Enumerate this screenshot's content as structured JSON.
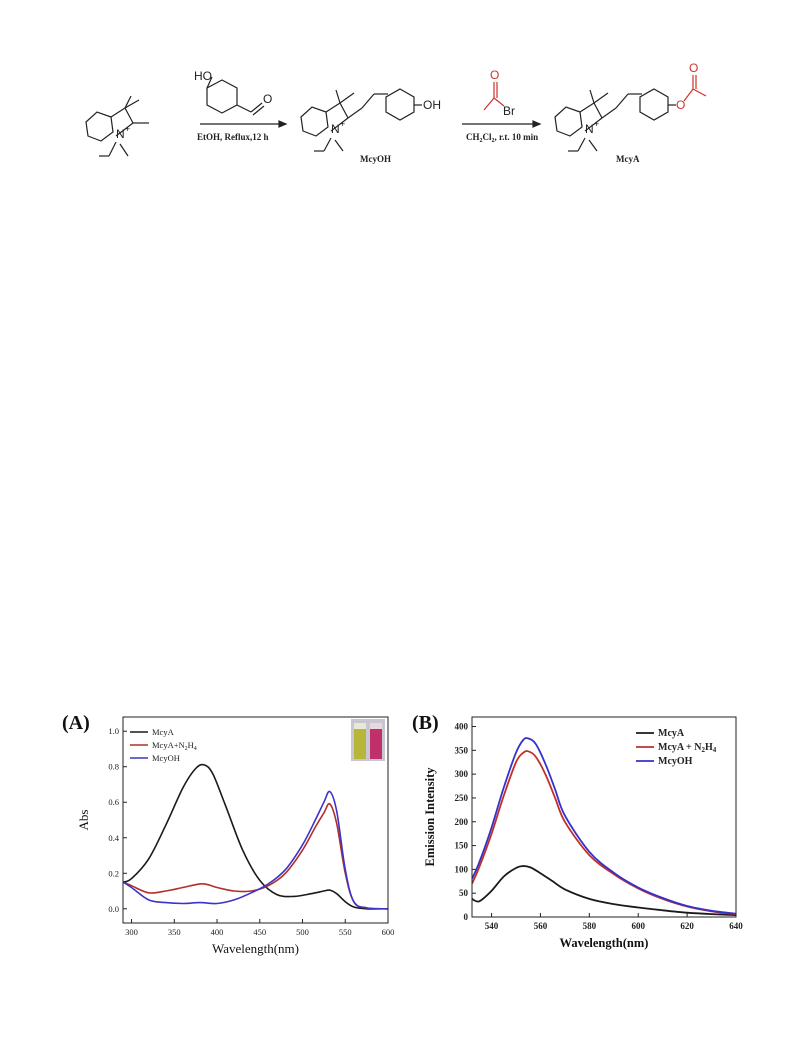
{
  "scheme": {
    "reagent1_oh": "HO",
    "reagent1_o": "O",
    "cond1": "EtOH, Reflux,12 h",
    "product1_oh": "OH",
    "product1_name": "McyOH",
    "reagent2_o": "O",
    "reagent2_br": "Br",
    "cond2_a": "CH",
    "cond2_b": "2",
    "cond2_c": "Cl",
    "cond2_d": "2",
    "cond2_e": ", r.t. 10 min",
    "product2_o1": "O",
    "product2_o2": "O",
    "product2_name": "McyA",
    "n_label": "N",
    "plus": "+",
    "colors": {
      "red": "#d0312d",
      "black": "#222222"
    }
  },
  "panels": {
    "a": {
      "label": "(A)",
      "xlabel": "Wavelength(nm)",
      "ylabel": "Abs"
    },
    "b": {
      "label": "(B)",
      "xlabel": "Wavelength(nm)",
      "ylabel": "Emission Intensity"
    }
  },
  "chart_data": [
    {
      "type": "line",
      "title": "",
      "xlabel": "Wavelength(nm)",
      "ylabel": "Abs",
      "xlim": [
        290,
        600
      ],
      "ylim": [
        -0.08,
        1.08
      ],
      "xticks": [
        300,
        350,
        400,
        450,
        500,
        550,
        600
      ],
      "yticks": [
        0.0,
        0.2,
        0.4,
        0.6,
        0.8,
        1.0
      ],
      "xtick_labels": [
        "300",
        "350",
        "400",
        "450",
        "500",
        "550",
        "600"
      ],
      "ytick_labels": [
        "0.0",
        "0.2",
        "0.4",
        "0.6",
        "0.8",
        "1.0"
      ],
      "legend_position": "top-left",
      "legend_labels": [
        "McyA",
        "McyA+N",
        "2",
        "H",
        "4",
        "McyOH"
      ],
      "inset": "two cuvettes: yellow (left), pink (right)",
      "series": [
        {
          "name": "McyA",
          "color": "#1a1a1a",
          "x": [
            290,
            300,
            320,
            340,
            360,
            375,
            385,
            395,
            410,
            430,
            450,
            470,
            490,
            510,
            525,
            532,
            540,
            550,
            560,
            575,
            600
          ],
          "y": [
            0.15,
            0.17,
            0.28,
            0.47,
            0.68,
            0.79,
            0.81,
            0.76,
            0.58,
            0.33,
            0.16,
            0.08,
            0.07,
            0.085,
            0.1,
            0.105,
            0.085,
            0.04,
            0.01,
            0.0,
            0.0
          ]
        },
        {
          "name": "McyA+N2H4",
          "color": "#b03028",
          "x": [
            290,
            300,
            320,
            340,
            360,
            380,
            390,
            400,
            420,
            440,
            460,
            480,
            500,
            515,
            525,
            532,
            540,
            550,
            560,
            575,
            600
          ],
          "y": [
            0.15,
            0.13,
            0.09,
            0.1,
            0.12,
            0.14,
            0.135,
            0.12,
            0.1,
            0.1,
            0.13,
            0.2,
            0.33,
            0.46,
            0.54,
            0.59,
            0.48,
            0.2,
            0.04,
            0.005,
            0.0
          ]
        },
        {
          "name": "McyOH",
          "color": "#3d33c8",
          "x": [
            290,
            300,
            320,
            340,
            360,
            380,
            400,
            420,
            440,
            460,
            480,
            500,
            515,
            525,
            532,
            540,
            550,
            560,
            575,
            600
          ],
          "y": [
            0.15,
            0.12,
            0.05,
            0.035,
            0.03,
            0.035,
            0.03,
            0.05,
            0.09,
            0.14,
            0.22,
            0.36,
            0.5,
            0.6,
            0.66,
            0.55,
            0.22,
            0.04,
            0.005,
            0.0
          ]
        }
      ]
    },
    {
      "type": "line",
      "title": "",
      "xlabel": "Wavelength(nm)",
      "ylabel": "Emission Intensity",
      "xlim": [
        532,
        640
      ],
      "ylim": [
        0,
        420
      ],
      "xticks": [
        540,
        560,
        580,
        600,
        620,
        640
      ],
      "yticks": [
        0,
        50,
        100,
        150,
        200,
        250,
        300,
        350,
        400
      ],
      "xtick_labels": [
        "540",
        "560",
        "580",
        "600",
        "620",
        "640"
      ],
      "ytick_labels": [
        "0",
        "50",
        "100",
        "150",
        "200",
        "250",
        "300",
        "350",
        "400"
      ],
      "legend_position": "top-right",
      "legend_labels": [
        "McyA",
        "McyA + N",
        "2",
        "H",
        "4",
        "McyOH"
      ],
      "series": [
        {
          "name": "McyA",
          "color": "#1a1a1a",
          "x": [
            532,
            535,
            540,
            545,
            550,
            553,
            556,
            560,
            565,
            570,
            580,
            590,
            600,
            610,
            620,
            630,
            640
          ],
          "y": [
            38,
            33,
            55,
            85,
            103,
            107,
            104,
            92,
            75,
            58,
            38,
            27,
            20,
            14,
            9,
            6,
            4
          ]
        },
        {
          "name": "McyA+N2H4",
          "color": "#c0302a",
          "x": [
            532,
            535,
            540,
            545,
            550,
            553,
            555,
            558,
            562,
            566,
            570,
            580,
            590,
            600,
            610,
            620,
            630,
            640
          ],
          "y": [
            70,
            105,
            175,
            255,
            325,
            345,
            348,
            337,
            300,
            250,
            200,
            130,
            90,
            60,
            38,
            22,
            12,
            6
          ]
        },
        {
          "name": "McyOH",
          "color": "#3530cc",
          "x": [
            532,
            535,
            540,
            545,
            550,
            553,
            555,
            558,
            562,
            566,
            570,
            580,
            590,
            600,
            610,
            620,
            630,
            640
          ],
          "y": [
            80,
            115,
            188,
            272,
            345,
            372,
            375,
            364,
            322,
            268,
            213,
            137,
            93,
            62,
            40,
            23,
            13,
            7
          ]
        }
      ]
    }
  ]
}
